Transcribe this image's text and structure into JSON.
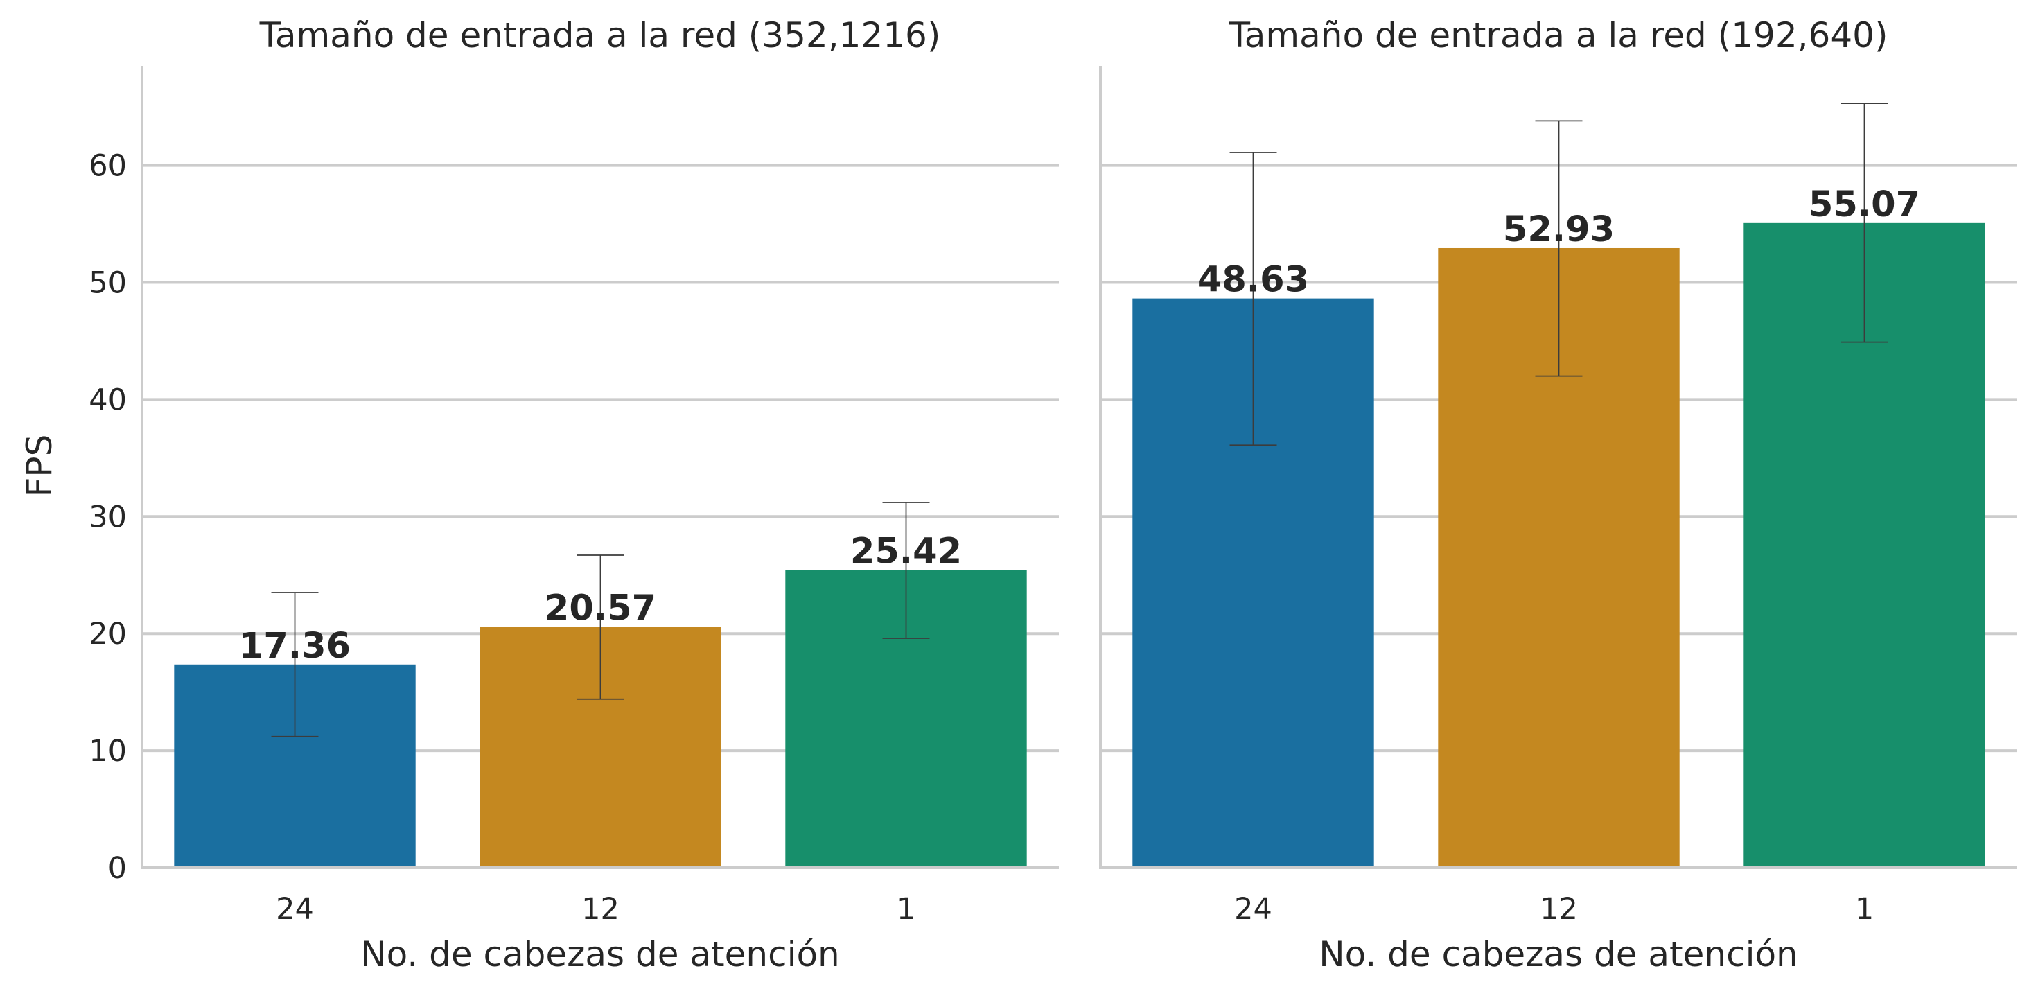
{
  "chart_data": [
    {
      "type": "bar",
      "title": "Tamaño de entrada a la red (352,1216)",
      "xlabel": "No. de cabezas de atención",
      "ylabel": "FPS",
      "categories": [
        "24",
        "12",
        "1"
      ],
      "values": [
        17.36,
        20.57,
        25.42
      ],
      "value_labels": [
        "17.36",
        "20.57",
        "25.42"
      ],
      "error_low": [
        11.2,
        14.4,
        19.6
      ],
      "error_high": [
        23.5,
        26.7,
        31.2
      ],
      "colors": [
        "#1a6fa0",
        "#c48820",
        "#178f6b"
      ],
      "ylim": [
        0,
        68.5
      ],
      "yticks": [
        0,
        10,
        20,
        30,
        40,
        50,
        60
      ],
      "grid": "horizontal"
    },
    {
      "type": "bar",
      "title": "Tamaño de entrada a la red (192,640)",
      "xlabel": "No. de cabezas de atención",
      "ylabel": "",
      "categories": [
        "24",
        "12",
        "1"
      ],
      "values": [
        48.63,
        52.93,
        55.07
      ],
      "value_labels": [
        "48.63",
        "52.93",
        "55.07"
      ],
      "error_low": [
        36.1,
        42.0,
        44.9
      ],
      "error_high": [
        61.1,
        63.8,
        65.3
      ],
      "colors": [
        "#1a6fa0",
        "#c48820",
        "#178f6b"
      ],
      "ylim": [
        0,
        68.5
      ],
      "yticks": [
        0,
        10,
        20,
        30,
        40,
        50,
        60
      ],
      "grid": "horizontal"
    }
  ]
}
